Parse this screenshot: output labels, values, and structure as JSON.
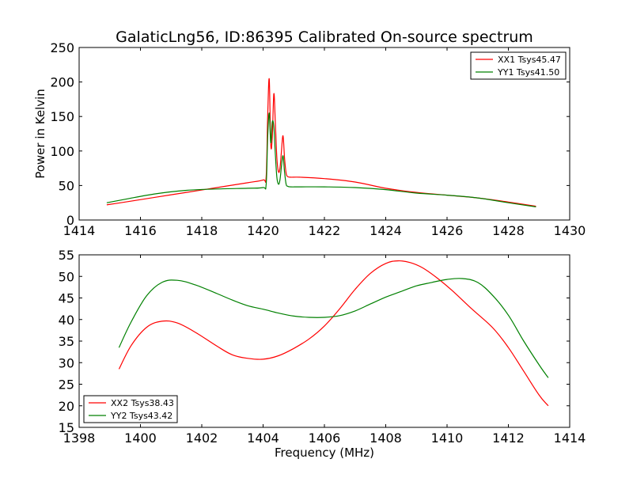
{
  "colors": {
    "red": "#ff0000",
    "green": "#008000"
  },
  "chart_data": [
    {
      "type": "line",
      "title": "GalaticLng56, ID:86395 Calibrated On-source spectrum",
      "xlabel": "",
      "ylabel": "Power in Kelvin",
      "xlim": [
        1414,
        1430
      ],
      "ylim": [
        0,
        250
      ],
      "xticks": [
        1414,
        1416,
        1418,
        1420,
        1422,
        1424,
        1426,
        1428,
        1430
      ],
      "yticks": [
        0,
        50,
        100,
        150,
        200,
        250
      ],
      "grid": false,
      "legend": "top-right",
      "series": [
        {
          "name": "XX1 Tsys45.47",
          "color": "#ff0000",
          "x": [
            1414.9,
            1415.5,
            1416.5,
            1417.5,
            1418.5,
            1419.5,
            1420.0,
            1420.1,
            1420.15,
            1420.2,
            1420.25,
            1420.3,
            1420.35,
            1420.4,
            1420.45,
            1420.5,
            1420.55,
            1420.6,
            1420.65,
            1420.7,
            1420.75,
            1420.8,
            1420.9,
            1421.2,
            1422.0,
            1423.0,
            1424.0,
            1425.0,
            1426.0,
            1427.0,
            1428.0,
            1428.9
          ],
          "y": [
            22,
            26,
            33,
            40,
            47,
            54,
            58,
            63,
            150,
            204,
            110,
            120,
            183,
            140,
            90,
            70,
            75,
            100,
            122,
            90,
            68,
            63,
            62,
            62,
            60,
            55,
            46,
            40,
            36,
            32,
            26,
            20
          ]
        },
        {
          "name": "YY1 Tsys41.50",
          "color": "#008000",
          "x": [
            1414.9,
            1415.5,
            1416.5,
            1417.5,
            1418.5,
            1419.5,
            1420.0,
            1420.1,
            1420.15,
            1420.2,
            1420.25,
            1420.3,
            1420.35,
            1420.4,
            1420.45,
            1420.5,
            1420.55,
            1420.6,
            1420.65,
            1420.7,
            1420.75,
            1420.8,
            1420.9,
            1421.2,
            1422.0,
            1423.0,
            1424.0,
            1425.0,
            1426.0,
            1427.0,
            1428.0,
            1428.9
          ],
          "y": [
            25,
            30,
            38,
            43,
            45,
            46,
            47,
            52,
            120,
            155,
            112,
            142,
            135,
            95,
            62,
            52,
            58,
            78,
            93,
            70,
            52,
            49,
            48,
            48,
            48,
            47,
            44,
            39,
            36,
            32,
            25,
            19
          ]
        }
      ]
    },
    {
      "type": "line",
      "title": "",
      "xlabel": "Frequency (MHz)",
      "ylabel": "",
      "xlim": [
        1398,
        1414
      ],
      "ylim": [
        15,
        55
      ],
      "xticks": [
        1398,
        1400,
        1402,
        1404,
        1406,
        1408,
        1410,
        1412,
        1414
      ],
      "yticks": [
        15,
        20,
        25,
        30,
        35,
        40,
        45,
        50,
        55
      ],
      "grid": false,
      "legend": "bottom-left",
      "series": [
        {
          "name": "XX2 Tsys38.43",
          "color": "#ff0000",
          "x": [
            1399.3,
            1399.7,
            1400.2,
            1400.7,
            1401.2,
            1401.8,
            1402.5,
            1403.0,
            1403.5,
            1404.0,
            1404.5,
            1405.0,
            1405.5,
            1406.0,
            1406.5,
            1407.0,
            1407.5,
            1408.0,
            1408.4,
            1408.8,
            1409.2,
            1409.7,
            1410.2,
            1410.8,
            1411.5,
            1412.0,
            1412.5,
            1413.0,
            1413.3
          ],
          "y": [
            28.5,
            34,
            38.2,
            39.6,
            39.2,
            37,
            33.8,
            31.8,
            31,
            30.8,
            31.6,
            33.3,
            35.5,
            38.5,
            42.5,
            47,
            50.7,
            53,
            53.6,
            53.2,
            52,
            49.5,
            46.5,
            42.5,
            38,
            33.5,
            28,
            22.5,
            20
          ]
        },
        {
          "name": "YY2 Tsys43.42",
          "color": "#008000",
          "x": [
            1399.3,
            1399.7,
            1400.2,
            1400.7,
            1401.2,
            1401.8,
            1402.5,
            1403.0,
            1403.5,
            1404.0,
            1404.5,
            1405.0,
            1405.5,
            1406.0,
            1406.5,
            1407.0,
            1407.5,
            1408.0,
            1408.5,
            1409.0,
            1409.5,
            1410.0,
            1410.5,
            1411.0,
            1411.5,
            1412.0,
            1412.5,
            1413.0,
            1413.3
          ],
          "y": [
            33.5,
            39.5,
            45.5,
            48.6,
            49.1,
            48,
            46,
            44.5,
            43.2,
            42.4,
            41.5,
            40.8,
            40.5,
            40.5,
            40.9,
            42,
            43.6,
            45.2,
            46.5,
            47.8,
            48.6,
            49.3,
            49.5,
            48.6,
            45.5,
            41,
            35,
            29.5,
            26.5
          ]
        }
      ]
    }
  ]
}
